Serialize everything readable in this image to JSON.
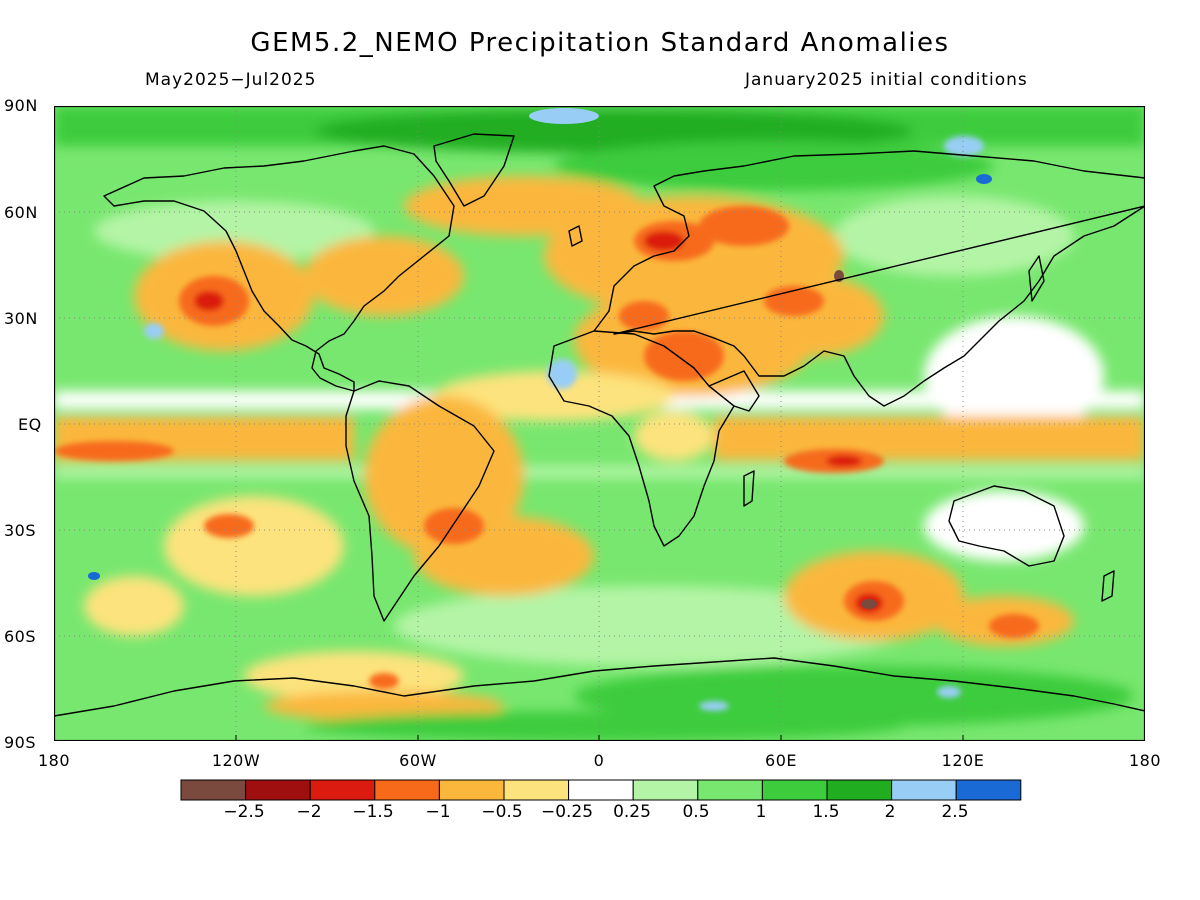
{
  "title": "GEM5.2_NEMO Precipitation Standard Anomalies",
  "subtitle_left": "May2025−Jul2025",
  "subtitle_right": "January2025 initial conditions",
  "lat_labels": [
    "90N",
    "60N",
    "30N",
    "EQ",
    "30S",
    "60S",
    "90S"
  ],
  "lon_labels": [
    "180",
    "120W",
    "60W",
    "0",
    "60E",
    "120E",
    "180"
  ],
  "legend": {
    "colors": [
      "#7b4a3f",
      "#a00f0f",
      "#db1a10",
      "#f76a1a",
      "#fbb73c",
      "#fde37d",
      "#ffffff",
      "#b4f4a6",
      "#78e76f",
      "#3ccc3c",
      "#20ad20",
      "#98cef5",
      "#1a6ad6"
    ],
    "labels": [
      "−2.5",
      "−2",
      "−1.5",
      "−1",
      "−0.5",
      "−0.25",
      "0.25",
      "0.5",
      "1",
      "1.5",
      "2",
      "2.5"
    ]
  }
}
